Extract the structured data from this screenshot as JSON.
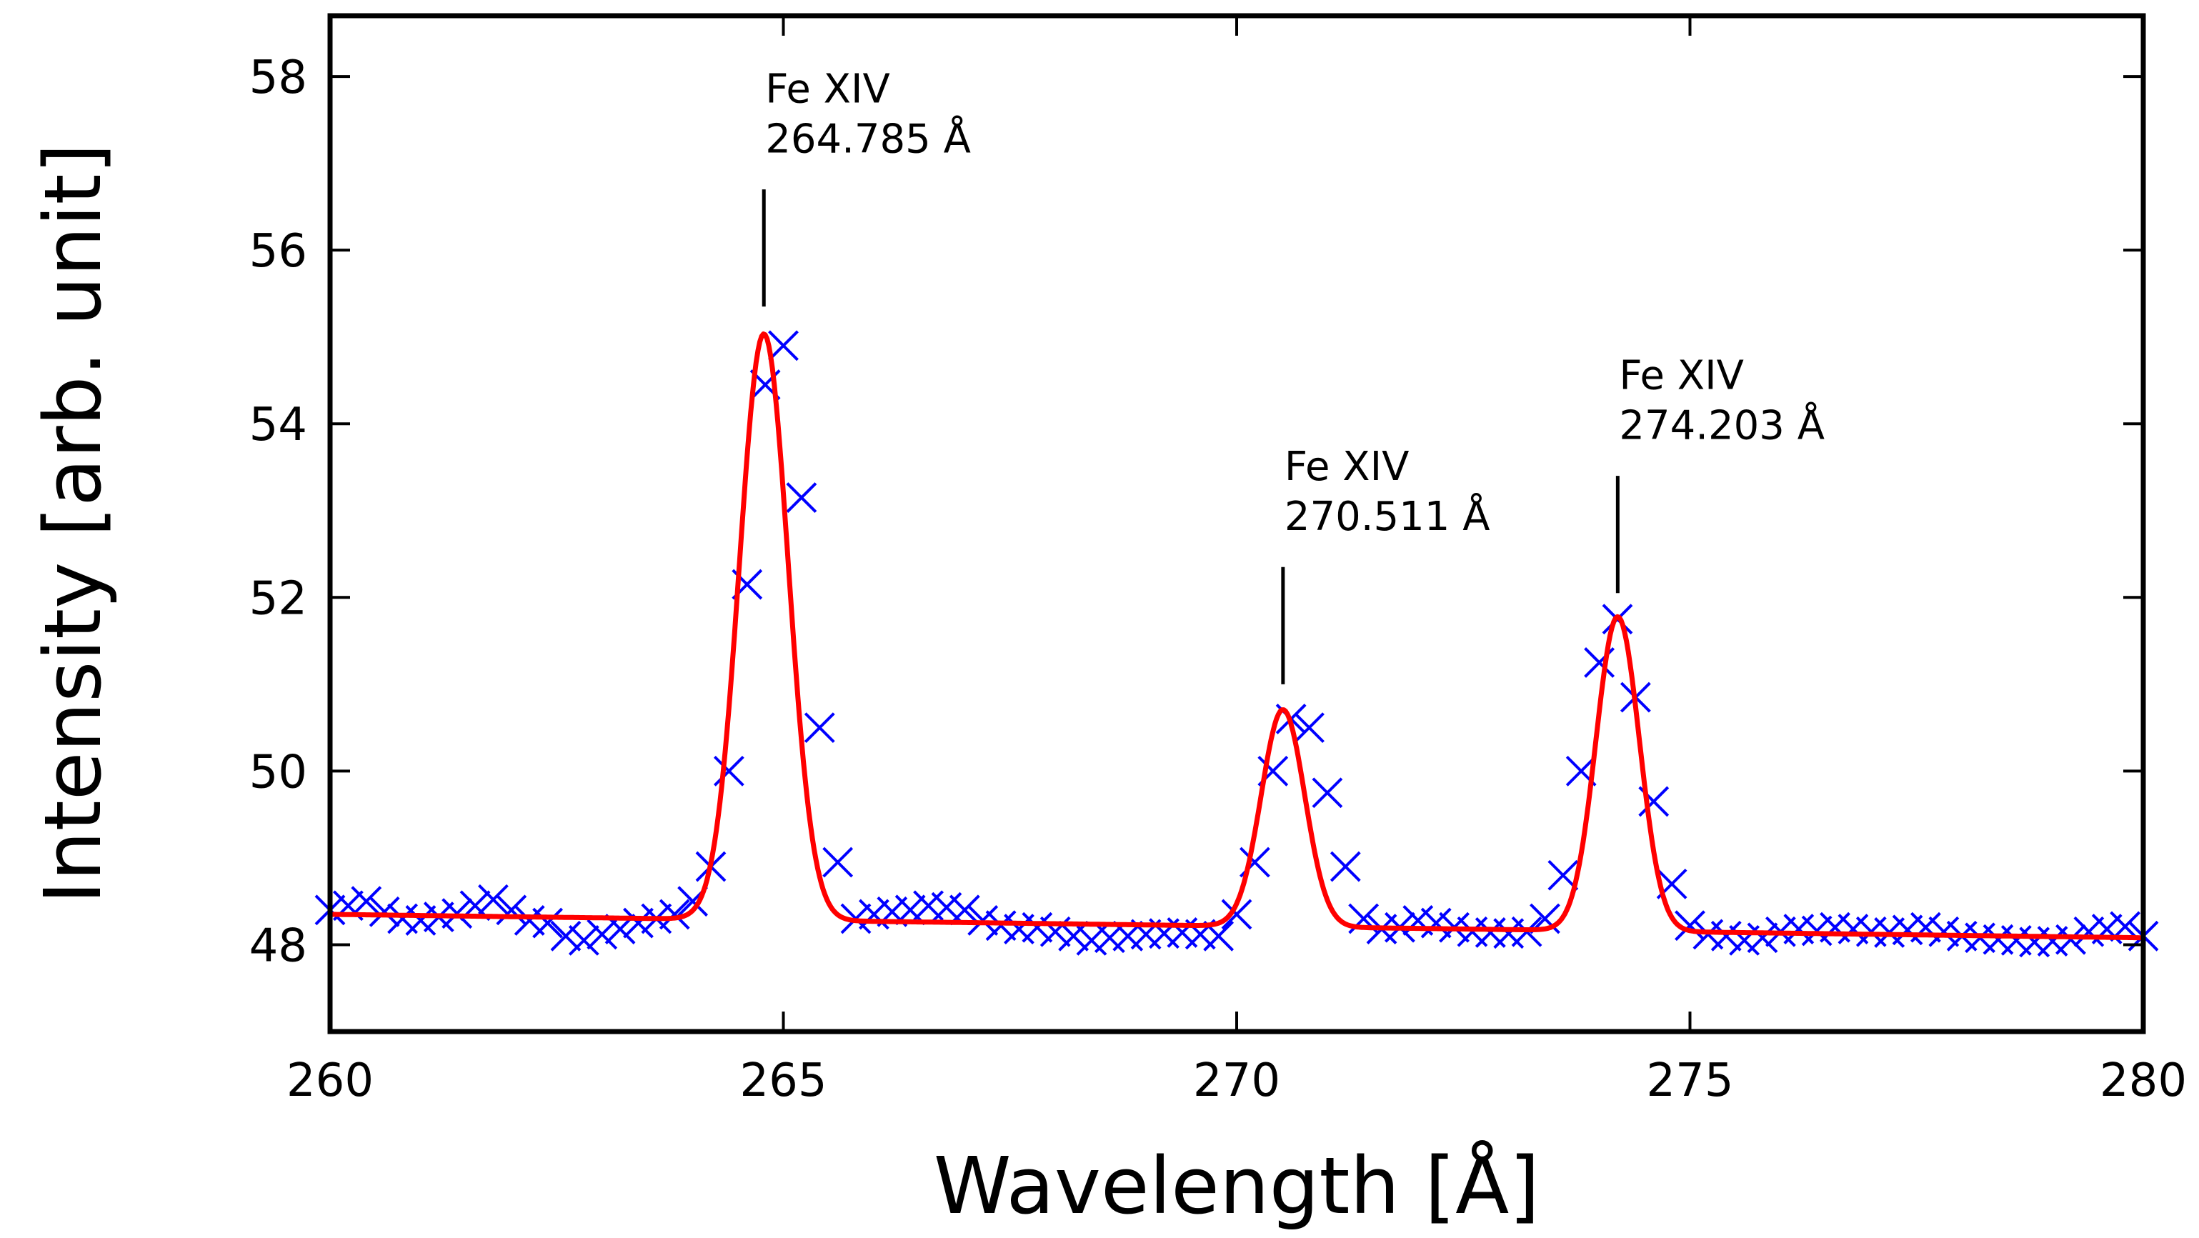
{
  "chart_data": {
    "type": "line",
    "title": "",
    "xlabel": "Wavelength [Å]",
    "ylabel": "Intensity [arb. unit]",
    "xlim": [
      260,
      280
    ],
    "ylim": [
      47.0,
      58.7
    ],
    "grid": false,
    "legend": "none",
    "xticks": [
      {
        "value": 260,
        "label": "260"
      },
      {
        "value": 265,
        "label": "265"
      },
      {
        "value": 270,
        "label": "270"
      },
      {
        "value": 275,
        "label": "275"
      },
      {
        "value": 280,
        "label": "280"
      }
    ],
    "yticks": [
      {
        "value": 48,
        "label": "48"
      },
      {
        "value": 50,
        "label": "50"
      },
      {
        "value": 52,
        "label": "52"
      },
      {
        "value": 54,
        "label": "54"
      },
      {
        "value": 56,
        "label": "56"
      },
      {
        "value": 58,
        "label": "58"
      }
    ],
    "colors": {
      "data": "#0000ff",
      "fit": "#ff0000",
      "axes": "#000000"
    },
    "series": [
      {
        "style": "x-markers",
        "color": "#0000ff",
        "x": [
          260.0,
          260.2,
          260.4,
          260.6,
          260.8,
          261.0,
          261.2,
          261.4,
          261.6,
          261.8,
          262.0,
          262.2,
          262.4,
          262.6,
          262.8,
          263.0,
          263.2,
          263.4,
          263.6,
          263.8,
          264.0,
          264.2,
          264.4,
          264.6,
          264.8,
          265.0,
          265.2,
          265.4,
          265.6,
          265.8,
          266.0,
          266.2,
          266.4,
          266.6,
          266.8,
          267.0,
          267.2,
          267.4,
          267.6,
          267.8,
          268.0,
          268.2,
          268.4,
          268.6,
          268.8,
          269.0,
          269.2,
          269.4,
          269.6,
          269.8,
          270.0,
          270.2,
          270.4,
          270.6,
          270.8,
          271.0,
          271.2,
          271.4,
          271.6,
          271.8,
          272.0,
          272.2,
          272.4,
          272.6,
          272.8,
          273.0,
          273.2,
          273.4,
          273.6,
          273.8,
          274.0,
          274.2,
          274.4,
          274.6,
          274.8,
          275.0,
          275.2,
          275.4,
          275.6,
          275.8,
          276.0,
          276.2,
          276.4,
          276.6,
          276.8,
          277.0,
          277.2,
          277.4,
          277.6,
          277.8,
          278.0,
          278.2,
          278.4,
          278.6,
          278.8,
          279.0,
          279.2,
          279.4,
          279.6,
          279.8,
          280.0
        ],
        "y": [
          48.4,
          48.45,
          48.5,
          48.38,
          48.3,
          48.28,
          48.32,
          48.36,
          48.45,
          48.52,
          48.4,
          48.28,
          48.25,
          48.1,
          48.05,
          48.12,
          48.18,
          48.25,
          48.3,
          48.35,
          48.5,
          48.9,
          50.0,
          52.15,
          54.45,
          54.9,
          53.15,
          50.5,
          48.95,
          48.3,
          48.35,
          48.38,
          48.4,
          48.45,
          48.43,
          48.4,
          48.28,
          48.22,
          48.18,
          48.2,
          48.15,
          48.1,
          48.05,
          48.08,
          48.1,
          48.12,
          48.13,
          48.14,
          48.12,
          48.1,
          48.35,
          48.95,
          50.0,
          50.6,
          50.5,
          49.75,
          48.9,
          48.3,
          48.18,
          48.2,
          48.28,
          48.25,
          48.2,
          48.15,
          48.14,
          48.13,
          48.15,
          48.3,
          48.8,
          50.0,
          51.25,
          51.75,
          50.85,
          49.65,
          48.7,
          48.22,
          48.12,
          48.1,
          48.05,
          48.08,
          48.15,
          48.18,
          48.16,
          48.2,
          48.18,
          48.15,
          48.14,
          48.17,
          48.2,
          48.15,
          48.1,
          48.08,
          48.06,
          48.05,
          48.03,
          48.04,
          48.06,
          48.15,
          48.18,
          48.21,
          48.1
        ]
      },
      {
        "style": "line",
        "color": "#ff0000",
        "model": "gaussian-sum",
        "baseline": {
          "x": [
            260,
            280
          ],
          "y": [
            48.35,
            48.08
          ]
        },
        "peaks": [
          {
            "center": 264.785,
            "amplitude": 6.75,
            "sigma": 0.27
          },
          {
            "center": 270.511,
            "amplitude": 2.5,
            "sigma": 0.24
          },
          {
            "center": 274.203,
            "amplitude": 3.62,
            "sigma": 0.24
          }
        ]
      }
    ],
    "annotations": [
      {
        "x": 264.785,
        "line_y": [
          55.35,
          56.7
        ],
        "line1": "Fe XIV",
        "line2": " 264.785 Å",
        "text_y": 57.7
      },
      {
        "x": 270.511,
        "line_y": [
          51.0,
          52.35
        ],
        "line1": "Fe XIV",
        "line2": " 270.511 Å",
        "text_y": 53.35
      },
      {
        "x": 274.203,
        "line_y": [
          52.05,
          53.4
        ],
        "line1": "Fe XIV",
        "line2": " 274.203 Å",
        "text_y": 54.4
      }
    ]
  }
}
